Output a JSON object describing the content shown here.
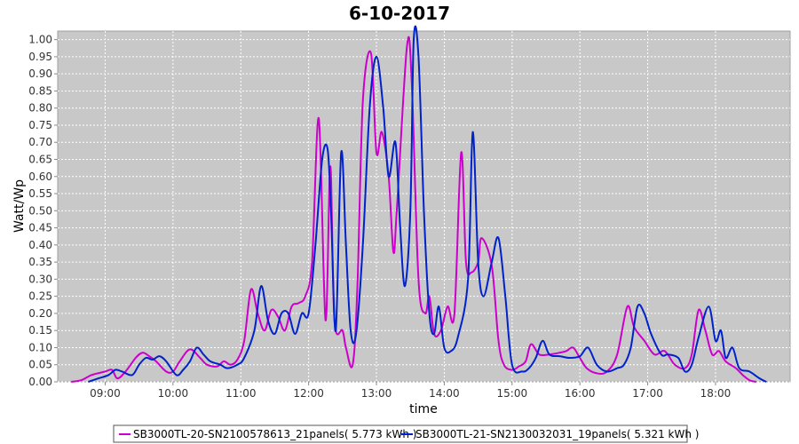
{
  "chart_data": {
    "type": "line",
    "title": "6-10-2017",
    "xlabel": "time",
    "ylabel": "Watt/Wp",
    "x_unit": "hour",
    "xlim": [
      8.3,
      19.1
    ],
    "ylim": [
      0,
      1.025
    ],
    "x_ticks": [
      {
        "label": "09:00",
        "value": 9
      },
      {
        "label": "10:00",
        "value": 10
      },
      {
        "label": "11:00",
        "value": 11
      },
      {
        "label": "12:00",
        "value": 12
      },
      {
        "label": "13:00",
        "value": 13
      },
      {
        "label": "14:00",
        "value": 14
      },
      {
        "label": "15:00",
        "value": 15
      },
      {
        "label": "16:00",
        "value": 16
      },
      {
        "label": "17:00",
        "value": 17
      },
      {
        "label": "18:00",
        "value": 18
      }
    ],
    "y_ticks": [
      "0.00",
      "0.05",
      "0.10",
      "0.15",
      "0.20",
      "0.25",
      "0.30",
      "0.35",
      "0.40",
      "0.45",
      "0.50",
      "0.55",
      "0.60",
      "0.65",
      "0.70",
      "0.75",
      "0.80",
      "0.85",
      "0.90",
      "0.95",
      "1.00"
    ],
    "grid": true,
    "legend_position": "bottom",
    "background_color": "#c8c8c8",
    "series": [
      {
        "name": "SB3000TL-20-SN2100578613_21panels( 5.773 kWh )",
        "color": "#cc00cc",
        "points": [
          [
            8.5,
            0.0
          ],
          [
            8.65,
            0.005
          ],
          [
            8.8,
            0.02
          ],
          [
            9.0,
            0.03
          ],
          [
            9.1,
            0.035
          ],
          [
            9.18,
            0.01
          ],
          [
            9.3,
            0.03
          ],
          [
            9.45,
            0.07
          ],
          [
            9.55,
            0.085
          ],
          [
            9.65,
            0.075
          ],
          [
            9.75,
            0.06
          ],
          [
            9.9,
            0.03
          ],
          [
            10.0,
            0.03
          ],
          [
            10.1,
            0.06
          ],
          [
            10.25,
            0.095
          ],
          [
            10.4,
            0.07
          ],
          [
            10.5,
            0.05
          ],
          [
            10.65,
            0.045
          ],
          [
            10.75,
            0.06
          ],
          [
            10.85,
            0.05
          ],
          [
            10.95,
            0.065
          ],
          [
            11.05,
            0.12
          ],
          [
            11.15,
            0.27
          ],
          [
            11.25,
            0.2
          ],
          [
            11.35,
            0.15
          ],
          [
            11.45,
            0.21
          ],
          [
            11.55,
            0.19
          ],
          [
            11.65,
            0.15
          ],
          [
            11.75,
            0.22
          ],
          [
            11.85,
            0.23
          ],
          [
            11.95,
            0.25
          ],
          [
            12.05,
            0.35
          ],
          [
            12.15,
            0.77
          ],
          [
            12.25,
            0.18
          ],
          [
            12.32,
            0.63
          ],
          [
            12.38,
            0.18
          ],
          [
            12.5,
            0.15
          ],
          [
            12.55,
            0.1
          ],
          [
            12.65,
            0.05
          ],
          [
            12.72,
            0.28
          ],
          [
            12.8,
            0.82
          ],
          [
            12.92,
            0.96
          ],
          [
            13.0,
            0.67
          ],
          [
            13.08,
            0.73
          ],
          [
            13.18,
            0.6
          ],
          [
            13.25,
            0.38
          ],
          [
            13.3,
            0.5
          ],
          [
            13.45,
            0.98
          ],
          [
            13.52,
            0.88
          ],
          [
            13.62,
            0.3
          ],
          [
            13.72,
            0.2
          ],
          [
            13.78,
            0.25
          ],
          [
            13.85,
            0.14
          ],
          [
            13.95,
            0.15
          ],
          [
            14.05,
            0.22
          ],
          [
            14.15,
            0.2
          ],
          [
            14.25,
            0.67
          ],
          [
            14.32,
            0.35
          ],
          [
            14.4,
            0.32
          ],
          [
            14.5,
            0.35
          ],
          [
            14.55,
            0.42
          ],
          [
            14.7,
            0.34
          ],
          [
            14.8,
            0.12
          ],
          [
            14.88,
            0.05
          ],
          [
            15.0,
            0.035
          ],
          [
            15.1,
            0.045
          ],
          [
            15.2,
            0.06
          ],
          [
            15.28,
            0.11
          ],
          [
            15.4,
            0.08
          ],
          [
            15.55,
            0.08
          ],
          [
            15.7,
            0.085
          ],
          [
            15.8,
            0.09
          ],
          [
            15.9,
            0.1
          ],
          [
            16.0,
            0.07
          ],
          [
            16.1,
            0.04
          ],
          [
            16.25,
            0.025
          ],
          [
            16.4,
            0.03
          ],
          [
            16.55,
            0.08
          ],
          [
            16.7,
            0.22
          ],
          [
            16.8,
            0.16
          ],
          [
            16.95,
            0.12
          ],
          [
            17.1,
            0.08
          ],
          [
            17.25,
            0.09
          ],
          [
            17.4,
            0.05
          ],
          [
            17.55,
            0.04
          ],
          [
            17.65,
            0.08
          ],
          [
            17.75,
            0.21
          ],
          [
            17.85,
            0.15
          ],
          [
            17.95,
            0.08
          ],
          [
            18.05,
            0.09
          ],
          [
            18.15,
            0.06
          ],
          [
            18.3,
            0.04
          ],
          [
            18.4,
            0.02
          ],
          [
            18.5,
            0.005
          ],
          [
            18.6,
            0.0
          ]
        ]
      },
      {
        "name": "SB3000TL-21-SN2130032031_19panels( 5.321 kWh )",
        "color": "#0022cc",
        "points": [
          [
            8.75,
            0.0
          ],
          [
            8.9,
            0.01
          ],
          [
            9.05,
            0.02
          ],
          [
            9.15,
            0.035
          ],
          [
            9.25,
            0.03
          ],
          [
            9.4,
            0.02
          ],
          [
            9.5,
            0.05
          ],
          [
            9.6,
            0.07
          ],
          [
            9.7,
            0.065
          ],
          [
            9.8,
            0.075
          ],
          [
            9.9,
            0.06
          ],
          [
            10.05,
            0.02
          ],
          [
            10.15,
            0.035
          ],
          [
            10.25,
            0.06
          ],
          [
            10.35,
            0.1
          ],
          [
            10.45,
            0.08
          ],
          [
            10.55,
            0.06
          ],
          [
            10.7,
            0.05
          ],
          [
            10.8,
            0.04
          ],
          [
            10.95,
            0.05
          ],
          [
            11.05,
            0.07
          ],
          [
            11.2,
            0.15
          ],
          [
            11.3,
            0.28
          ],
          [
            11.4,
            0.18
          ],
          [
            11.5,
            0.14
          ],
          [
            11.6,
            0.2
          ],
          [
            11.7,
            0.2
          ],
          [
            11.8,
            0.14
          ],
          [
            11.9,
            0.2
          ],
          [
            12.0,
            0.2
          ],
          [
            12.1,
            0.4
          ],
          [
            12.2,
            0.65
          ],
          [
            12.28,
            0.68
          ],
          [
            12.33,
            0.5
          ],
          [
            12.4,
            0.15
          ],
          [
            12.48,
            0.67
          ],
          [
            12.55,
            0.4
          ],
          [
            12.62,
            0.15
          ],
          [
            12.7,
            0.14
          ],
          [
            12.8,
            0.4
          ],
          [
            12.9,
            0.8
          ],
          [
            13.0,
            0.95
          ],
          [
            13.1,
            0.8
          ],
          [
            13.18,
            0.6
          ],
          [
            13.28,
            0.7
          ],
          [
            13.35,
            0.45
          ],
          [
            13.42,
            0.28
          ],
          [
            13.5,
            0.5
          ],
          [
            13.55,
            1.0
          ],
          [
            13.62,
            0.95
          ],
          [
            13.7,
            0.5
          ],
          [
            13.78,
            0.2
          ],
          [
            13.85,
            0.14
          ],
          [
            13.92,
            0.22
          ],
          [
            14.0,
            0.1
          ],
          [
            14.1,
            0.09
          ],
          [
            14.2,
            0.13
          ],
          [
            14.35,
            0.3
          ],
          [
            14.42,
            0.73
          ],
          [
            14.5,
            0.35
          ],
          [
            14.58,
            0.25
          ],
          [
            14.7,
            0.35
          ],
          [
            14.8,
            0.42
          ],
          [
            14.9,
            0.25
          ],
          [
            15.0,
            0.05
          ],
          [
            15.15,
            0.03
          ],
          [
            15.25,
            0.04
          ],
          [
            15.35,
            0.07
          ],
          [
            15.45,
            0.12
          ],
          [
            15.55,
            0.08
          ],
          [
            15.7,
            0.075
          ],
          [
            15.85,
            0.07
          ],
          [
            16.0,
            0.075
          ],
          [
            16.12,
            0.1
          ],
          [
            16.25,
            0.05
          ],
          [
            16.4,
            0.03
          ],
          [
            16.55,
            0.04
          ],
          [
            16.65,
            0.05
          ],
          [
            16.75,
            0.1
          ],
          [
            16.85,
            0.22
          ],
          [
            16.95,
            0.2
          ],
          [
            17.05,
            0.14
          ],
          [
            17.2,
            0.08
          ],
          [
            17.3,
            0.08
          ],
          [
            17.45,
            0.07
          ],
          [
            17.55,
            0.03
          ],
          [
            17.65,
            0.05
          ],
          [
            17.75,
            0.13
          ],
          [
            17.9,
            0.22
          ],
          [
            18.0,
            0.12
          ],
          [
            18.08,
            0.15
          ],
          [
            18.15,
            0.07
          ],
          [
            18.25,
            0.1
          ],
          [
            18.35,
            0.04
          ],
          [
            18.5,
            0.03
          ],
          [
            18.65,
            0.01
          ],
          [
            18.75,
            0.0
          ]
        ]
      }
    ]
  }
}
